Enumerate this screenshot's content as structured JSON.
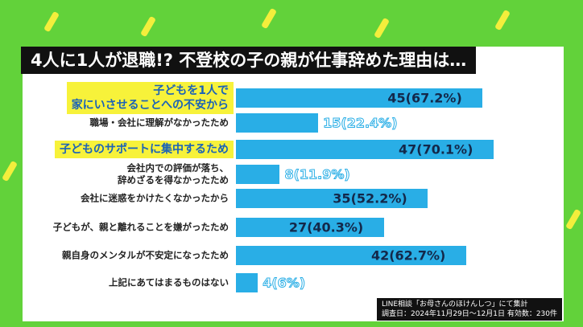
{
  "chart_data": {
    "type": "bar",
    "orientation": "horizontal",
    "title": "4人に1人が退職!? 不登校の子の親が仕事辞めた理由は…",
    "categories": [
      "子どもを1人で\n家にいさせることへの不安から",
      "職場・会社に理解がなかったため",
      "子どものサポートに集中するため",
      "会社内での評価が落ち、\n辞めざるを得なかったため",
      "会社に迷惑をかけたくなかったから",
      "子どもが、親と離れることを嫌がったため",
      "親自身のメンタルが不安定になったため",
      "上記にあてはまるものはない"
    ],
    "values": [
      45,
      15,
      47,
      8,
      35,
      27,
      42,
      4
    ],
    "value_labels": [
      "45(67.2%)",
      "15(22.4%)",
      "47(70.1%)",
      "8(11.9%)",
      "35(52.2%)",
      "27(40.3%)",
      "42(62.7%)",
      "4(6%)"
    ],
    "color": "#29aee6",
    "highlighted": [
      0,
      2
    ],
    "highlight_color": "#f7f23a",
    "notes": [
      "LINE相談「お母さんのほけんしつ」にて集計",
      "調査日：2024年11月29日〜12月1日 有効数：230件"
    ]
  }
}
